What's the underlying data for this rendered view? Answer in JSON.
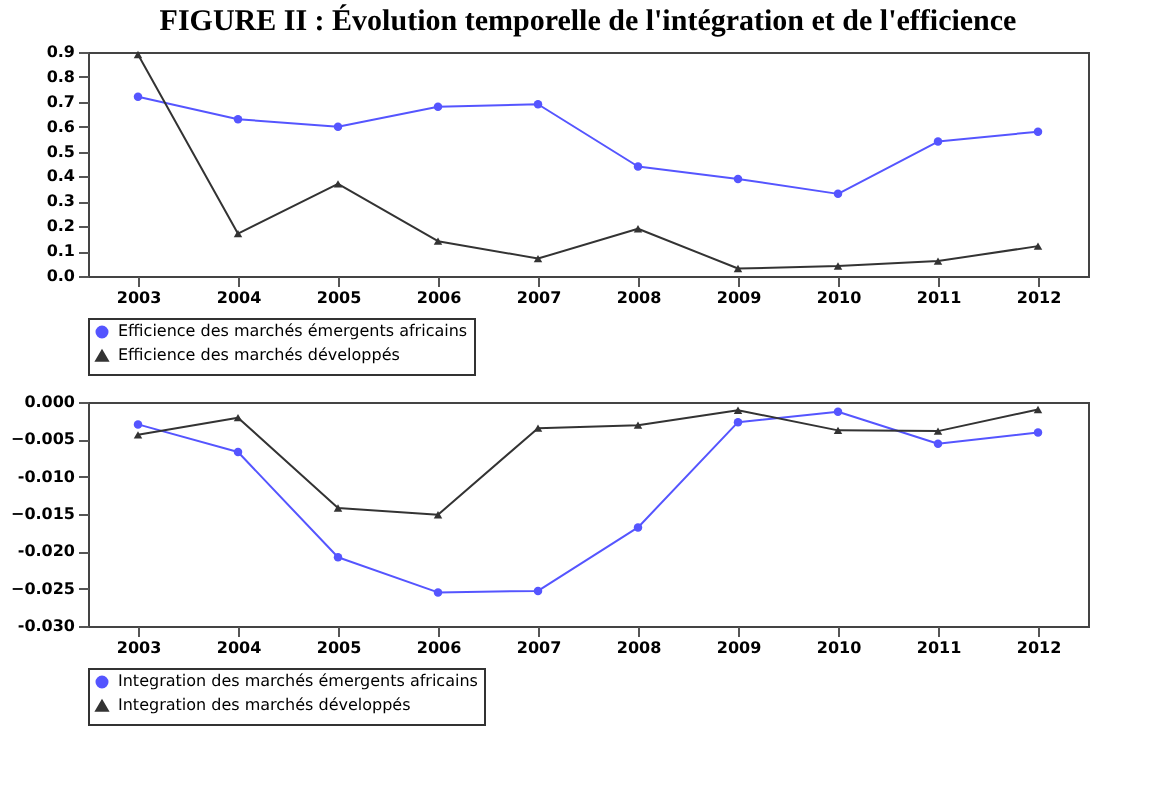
{
  "chart_data": [
    {
      "type": "line",
      "title": "FIGURE II : Évolution temporelle de l'intégration et de l'efficience",
      "categories": [
        "2003",
        "2004",
        "2005",
        "2006",
        "2007",
        "2008",
        "2009",
        "2010",
        "2011",
        "2012"
      ],
      "series": [
        {
          "name": "Efficience des marchés émergents africains",
          "color": "#5555ff",
          "marker": "circle",
          "values": [
            0.72,
            0.63,
            0.6,
            0.68,
            0.69,
            0.44,
            0.39,
            0.33,
            0.54,
            0.58
          ]
        },
        {
          "name": "Efficience des marchés développés",
          "color": "#333333",
          "marker": "triangle",
          "values": [
            0.89,
            0.17,
            0.37,
            0.14,
            0.07,
            0.19,
            0.03,
            0.04,
            0.06,
            0.12
          ]
        }
      ],
      "ylim": [
        0,
        0.9
      ],
      "yticks": [
        {
          "value": 0,
          "label": "0.0"
        },
        0.1,
        0.2,
        0.3,
        0.4,
        0.5,
        0.6,
        0.7,
        0.8,
        0.9
      ],
      "grid": false,
      "legend": "bottom"
    },
    {
      "type": "line",
      "categories": [
        "2003",
        "2004",
        "2005",
        "2006",
        "2007",
        "2008",
        "2009",
        "2010",
        "2011",
        "2012"
      ],
      "series": [
        {
          "name": "Integration des marchés émergents africains",
          "color": "#5555ff",
          "marker": "circle",
          "values": [
            -0.003,
            -0.0067,
            -0.0208,
            -0.0255,
            -0.0253,
            -0.0168,
            -0.0027,
            -0.0013,
            -0.0056,
            -0.0041
          ]
        },
        {
          "name": "Integration des marchés développés",
          "color": "#333333",
          "marker": "triangle",
          "values": [
            -0.0044,
            -0.0021,
            -0.0142,
            -0.0151,
            -0.0035,
            -0.0031,
            -0.0011,
            -0.0038,
            -0.0039,
            -0.001
          ]
        }
      ],
      "ylim": [
        -0.03,
        0
      ],
      "yticks": [
        {
          "value": -0.03,
          "label": "-0.030"
        },
        -0.025,
        {
          "value": -0.02,
          "label": "-0.020"
        },
        -0.015,
        {
          "value": -0.01,
          "label": "-0.010"
        },
        -0.005,
        {
          "value": 0,
          "label": "0.000"
        }
      ],
      "grid": false,
      "legend": "bottom"
    }
  ]
}
